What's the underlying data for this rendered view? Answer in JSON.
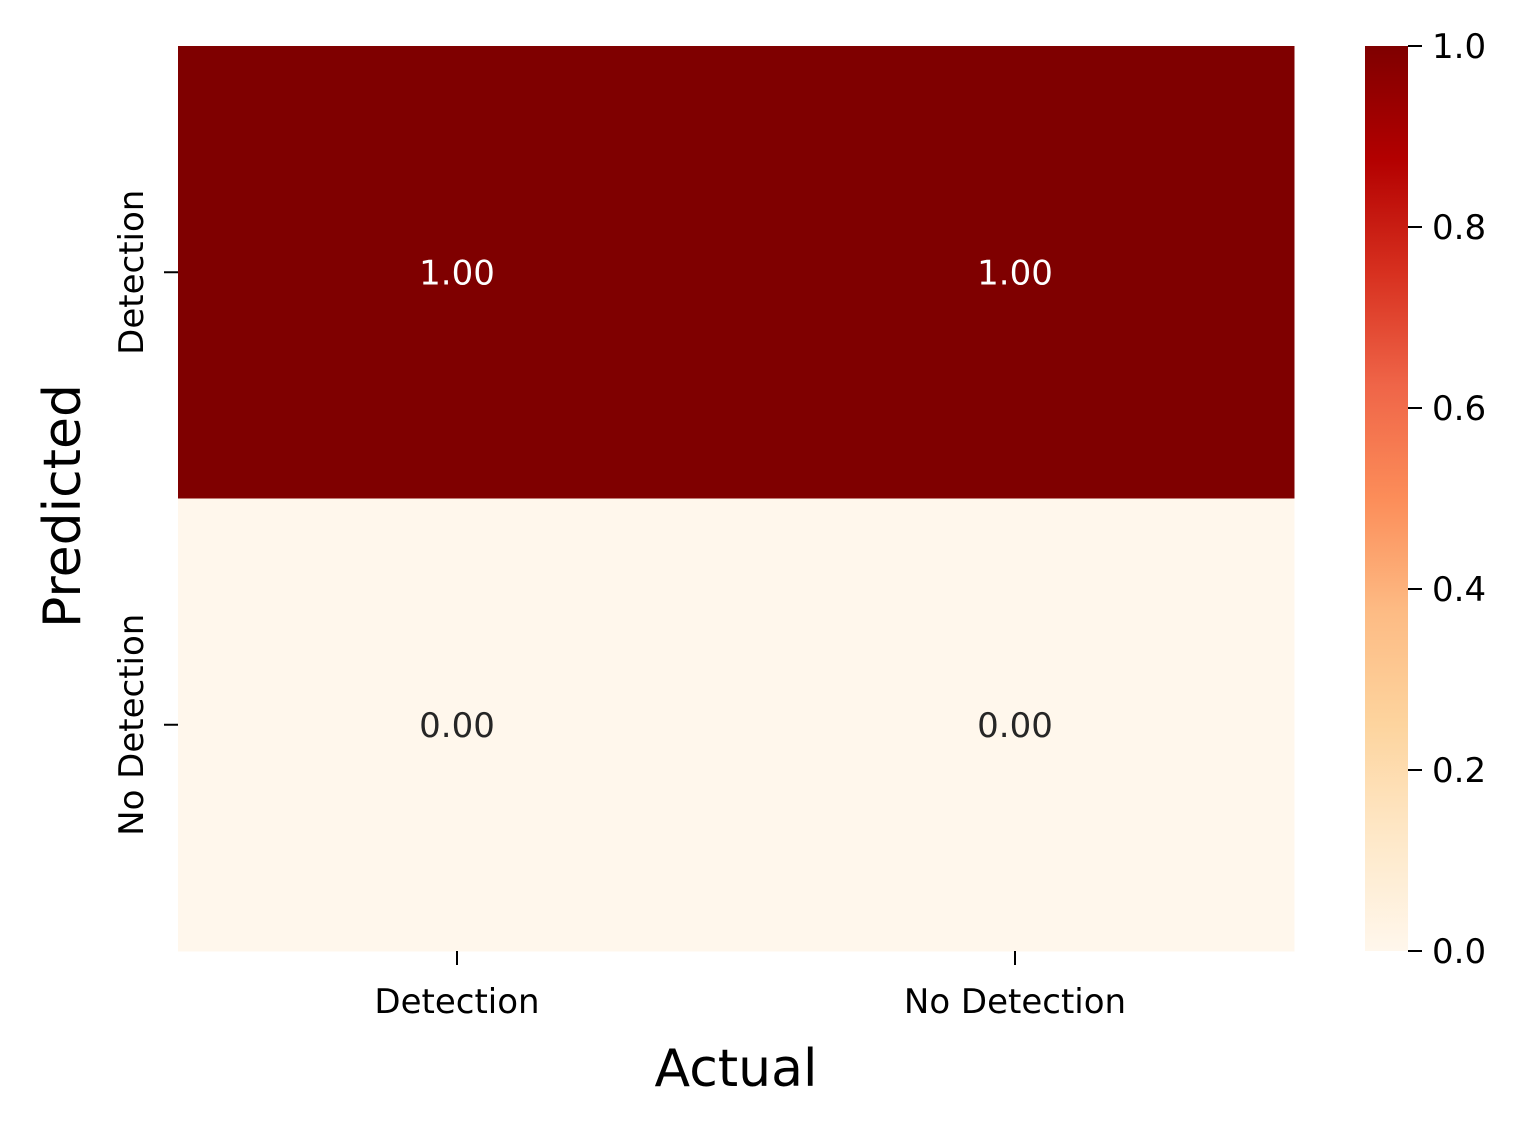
{
  "chart_data": {
    "type": "heatmap",
    "xlabel": "Actual",
    "ylabel": "Predicted",
    "x_categories": [
      "Detection",
      "No Detection"
    ],
    "y_categories": [
      "Detection",
      "No Detection"
    ],
    "values": [
      [
        1.0,
        1.0
      ],
      [
        0.0,
        0.0
      ]
    ],
    "cell_labels": [
      [
        "1.00",
        "1.00"
      ],
      [
        "0.00",
        "0.00"
      ]
    ],
    "colorbar": {
      "range": [
        0.0,
        1.0
      ],
      "ticks": [
        "0.0",
        "0.2",
        "0.4",
        "0.6",
        "0.8",
        "1.0"
      ],
      "colormap": "OrRd"
    },
    "colors": {
      "high": "#7f0000",
      "low": "#fff7ec",
      "text_on_dark": "#ffffff",
      "text_on_light": "#262626"
    }
  }
}
